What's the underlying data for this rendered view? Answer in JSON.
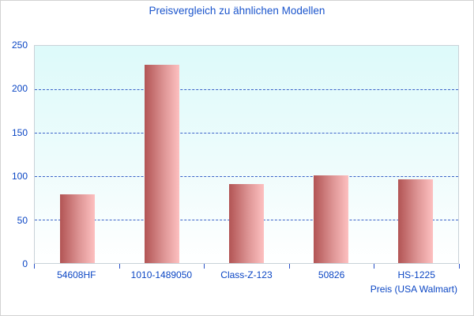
{
  "chart_data": {
    "type": "bar",
    "title": "Preisvergleich zu ähnlichen Modellen",
    "categories": [
      "54608HF",
      "1010-1489050",
      "Class-Z-123",
      "50826",
      "HS-1225"
    ],
    "values": [
      79,
      228,
      91,
      101,
      96
    ],
    "xlabel": "Preis (USA Walmart)",
    "ylabel": "",
    "ylim": [
      0,
      250
    ],
    "yticks": [
      0,
      50,
      100,
      150,
      200,
      250
    ],
    "grid": "horizontal dashed lines at 50, 100, 150, 200",
    "legend": "none",
    "colors": {
      "bar_gradient_left": "#b25454",
      "bar_gradient_right": "#fdc0c0",
      "plot_bg_top": "#ddfafa",
      "plot_bg_bottom": "#ffffff",
      "grid_color": "#3a62c8",
      "tick_text_color": "#0b46c4",
      "title_color": "#1a54cc",
      "plot_border": "#c9d2d8",
      "canvas_border": "#d2d2d2"
    }
  }
}
